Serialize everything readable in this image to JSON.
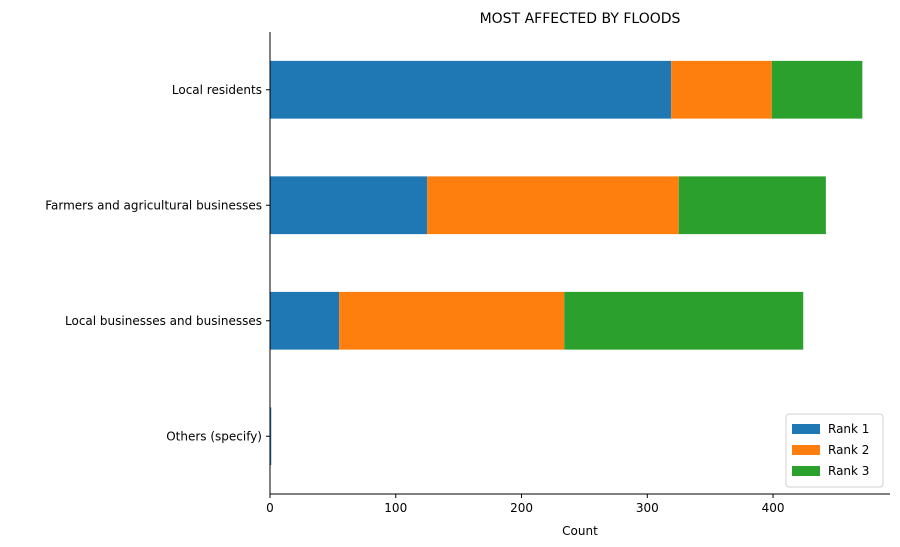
{
  "chart_data": {
    "type": "bar",
    "orientation": "horizontal",
    "stacked": true,
    "title": "MOST AFFECTED BY FLOODS",
    "xlabel": "Count",
    "ylabel": "",
    "xlim": [
      0,
      493
    ],
    "xticks": [
      0,
      100,
      200,
      300,
      400
    ],
    "categories": [
      "Local residents",
      "Farmers and agricultural businesses",
      "Local businesses and businesses",
      "Others (specify)"
    ],
    "series": [
      {
        "name": "Rank 1",
        "color": "#1f77b4",
        "values": [
          319,
          125,
          55,
          1
        ]
      },
      {
        "name": "Rank 2",
        "color": "#ff7f0e",
        "values": [
          80,
          200,
          179,
          0
        ]
      },
      {
        "name": "Rank 3",
        "color": "#2ca02c",
        "values": [
          72,
          117,
          190,
          0
        ]
      }
    ],
    "grid": false,
    "legend_position": "bottom-right"
  }
}
